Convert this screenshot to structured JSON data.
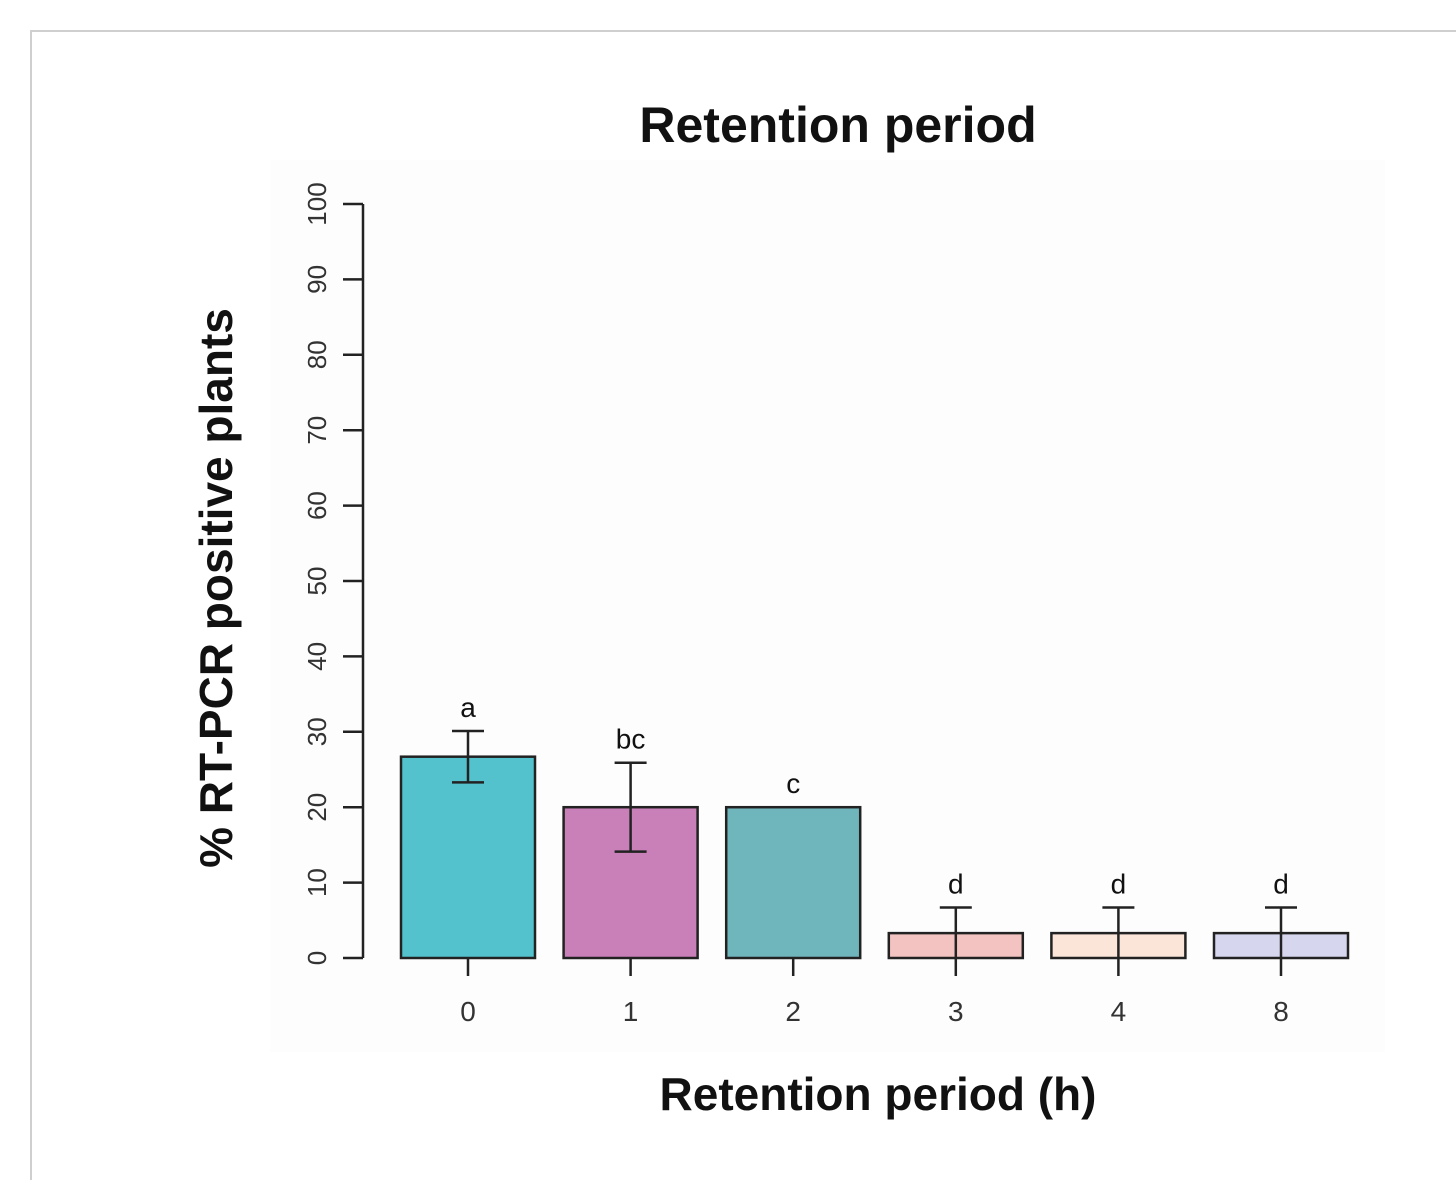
{
  "chart_data": {
    "type": "bar",
    "title": "Retention period",
    "xlabel": "Retention period (h)",
    "ylabel": "% RT-PCR positive plants",
    "ylim": [
      0,
      100
    ],
    "yticks": [
      "0",
      "10",
      "20",
      "30",
      "40",
      "50",
      "60",
      "70",
      "80",
      "90",
      "100"
    ],
    "categories": [
      "0",
      "1",
      "2",
      "3",
      "4",
      "8"
    ],
    "values": [
      26.7,
      20,
      20,
      3.3,
      3.3,
      3.3
    ],
    "error_low": [
      23.3,
      14.1,
      20,
      0,
      0,
      0
    ],
    "error_high": [
      30.1,
      25.9,
      20,
      6.7,
      6.7,
      6.7
    ],
    "significance": [
      "a",
      "bc",
      "c",
      "d",
      "d",
      "d"
    ],
    "colors": [
      "#53c2cc",
      "#c97fb8",
      "#6fb5bc",
      "#f2c3c0",
      "#fbe4d8",
      "#d6d7ee"
    ],
    "grid": false,
    "legend": "none"
  }
}
